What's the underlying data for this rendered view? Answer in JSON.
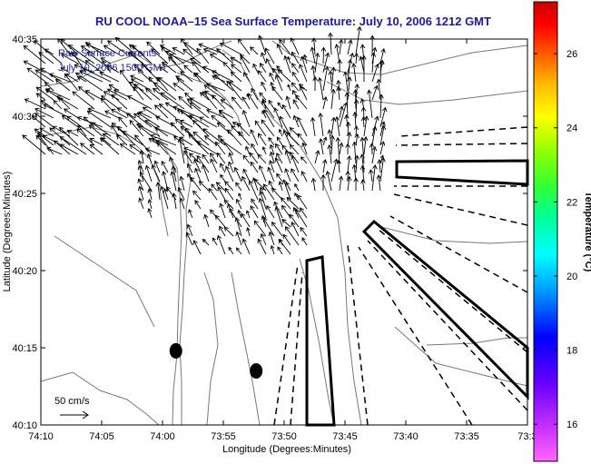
{
  "chart_data": {
    "type": "scatter",
    "title": "RU COOL  NOAA–15  Sea Surface Temperature:  July 10, 2006 1212 GMT",
    "xlabel": "Longitude (Degrees:Minutes)",
    "ylabel": "Latitude (Degrees:Minutes)",
    "x_ticks": [
      "74:10",
      "74:05",
      "74:00",
      "73:55",
      "73:50",
      "73:45",
      "73:40",
      "73:35",
      "73:3"
    ],
    "y_ticks": [
      "40:35",
      "40:30",
      "40:25",
      "40:20",
      "40:15",
      "40:10"
    ],
    "xlim_minutes_west": [
      4450,
      4410
    ],
    "ylim_minutes_north": [
      2410,
      2435
    ],
    "legend": {
      "line1": "Raw Surface Currents",
      "line2": "July 10, 2006 1500 GMT",
      "scale_label": "50 cm/s"
    },
    "colorbar": {
      "label": "Temperature (°C)",
      "ticks": [
        "26",
        "24",
        "22",
        "20",
        "18",
        "16"
      ],
      "tick_values": [
        26,
        24,
        22,
        20,
        18,
        16
      ],
      "range": [
        15.0,
        27.4
      ]
    },
    "colors": {
      "title": "#1a1aa6",
      "legend": "#1a1aa6",
      "coast": "#777777",
      "vectors": "#000000",
      "frame": "#000000"
    },
    "markers": [
      {
        "name": "station-1",
        "lon_min_west": 4438.9,
        "lat_min_north": 2414.8
      },
      {
        "name": "station-2",
        "lon_min_west": 4432.3,
        "lat_min_north": 2413.5
      }
    ]
  },
  "ui": {
    "colorbar_label": "Temperature (°C)"
  }
}
